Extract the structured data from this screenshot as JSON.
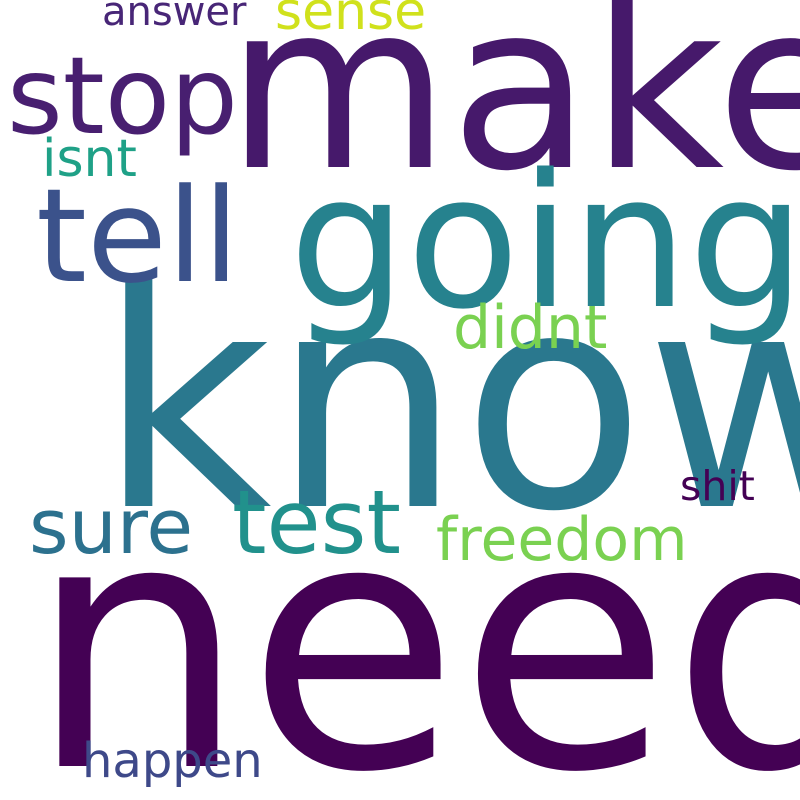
{
  "words": [
    {
      "text": "need",
      "color": "#440154"
    },
    {
      "text": "know",
      "color": "#2a788e"
    },
    {
      "text": "make",
      "color": "#46196b"
    },
    {
      "text": "going",
      "color": "#26828e"
    },
    {
      "text": "tell",
      "color": "#3b528b"
    },
    {
      "text": "stop",
      "color": "#481f70"
    },
    {
      "text": "test",
      "color": "#21918c"
    },
    {
      "text": "sure",
      "color": "#2c718e"
    },
    {
      "text": "freedom",
      "color": "#7ad151"
    },
    {
      "text": "didnt",
      "color": "#7ad151"
    },
    {
      "text": "isnt",
      "color": "#1fa187"
    },
    {
      "text": "sense",
      "color": "#d0e11c"
    },
    {
      "text": "answer",
      "color": "#482677"
    },
    {
      "text": "shit",
      "color": "#440154"
    },
    {
      "text": "happen",
      "color": "#3e4989"
    }
  ]
}
